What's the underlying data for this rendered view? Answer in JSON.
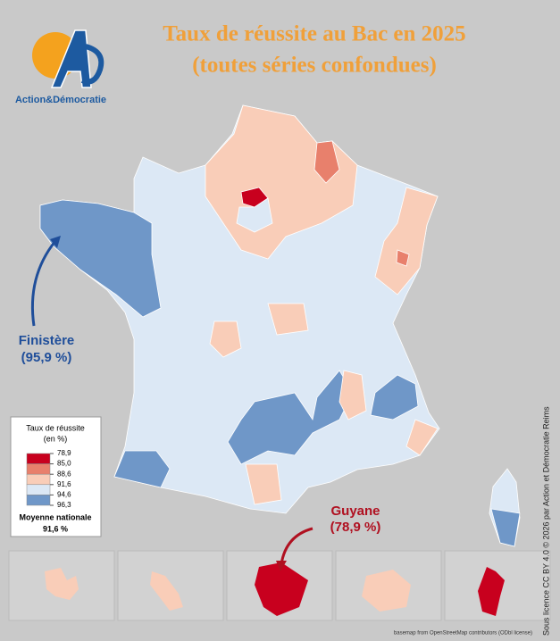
{
  "logo": {
    "text": "Action&Démocratie"
  },
  "title": {
    "lines": [
      "Taux de réussite au Bac en 2025",
      "(toutes séries confondues)"
    ]
  },
  "legend": {
    "title_lines": [
      "Taux de réussite",
      "(en %)"
    ],
    "thresholds": [
      {
        "value": 78.9,
        "label": "78,9"
      },
      {
        "value": 85.0,
        "label": "85,0"
      },
      {
        "value": 88.6,
        "label": "88,6"
      },
      {
        "value": 91.6,
        "label": "91,6"
      },
      {
        "value": 94.6,
        "label": "94,6"
      },
      {
        "value": 96.3,
        "label": "96,3"
      }
    ],
    "colors": [
      "#c8001e",
      "#e8806c",
      "#f9cdb8",
      "#dce8f5",
      "#6f97c8"
    ],
    "average_label": "Moyenne nationale",
    "average": {
      "value": 91.6,
      "label": "91,6 %"
    }
  },
  "annotations": [
    {
      "name": "Finistère",
      "rate": {
        "value": 95.9,
        "label": "(95,9 %)"
      }
    },
    {
      "name": "Guyane",
      "rate": {
        "value": 78.9,
        "label": "(78,9 %)"
      }
    }
  ],
  "credits": {
    "license": "Sous licence CC BY 4.0 © 2026 par Action et Démocratie Reims",
    "basemap": "basemap from OpenStreetMap contributors (ODbl license)"
  }
}
